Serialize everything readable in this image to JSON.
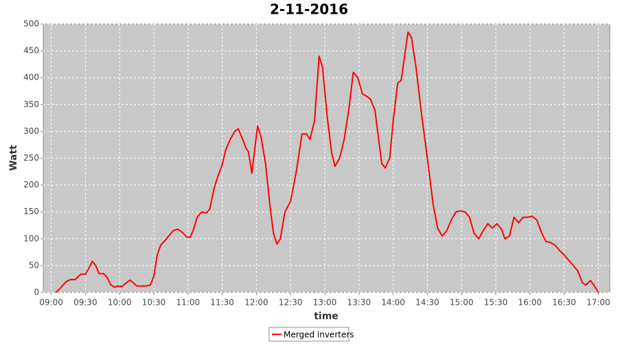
{
  "chart_data": {
    "type": "line",
    "title": "2-11-2016",
    "xlabel": "time",
    "ylabel": "Watt",
    "x": [
      "09:04",
      "09:08",
      "09:13",
      "09:17",
      "09:21",
      "09:26",
      "09:30",
      "09:33",
      "09:36",
      "09:39",
      "09:42",
      "09:46",
      "09:49",
      "09:52",
      "09:55",
      "09:59",
      "10:02",
      "10:06",
      "10:09",
      "10:12",
      "10:15",
      "10:19",
      "10:23",
      "10:27",
      "10:30",
      "10:33",
      "10:36",
      "10:40",
      "10:43",
      "10:47",
      "10:51",
      "10:55",
      "10:59",
      "11:02",
      "11:05",
      "11:08",
      "11:12",
      "11:16",
      "11:19",
      "11:23",
      "11:26",
      "11:30",
      "11:33",
      "11:37",
      "11:41",
      "11:44",
      "11:48",
      "11:51",
      "11:53",
      "11:56",
      "12:01",
      "12:04",
      "12:08",
      "12:12",
      "12:15",
      "12:18",
      "12:21",
      "12:25",
      "12:30",
      "12:35",
      "12:40",
      "12:44",
      "12:47",
      "12:51",
      "12:55",
      "12:58",
      "13:02",
      "13:06",
      "13:09",
      "13:13",
      "13:17",
      "13:21",
      "13:25",
      "13:29",
      "13:33",
      "13:37",
      "13:40",
      "13:44",
      "13:47",
      "13:50",
      "13:53",
      "13:57",
      "14:00",
      "14:04",
      "14:07",
      "14:10",
      "14:13",
      "14:16",
      "14:20",
      "14:25",
      "14:30",
      "14:35",
      "14:39",
      "14:43",
      "14:47",
      "14:51",
      "14:55",
      "14:59",
      "15:03",
      "15:07",
      "15:11",
      "15:15",
      "15:19",
      "15:23",
      "15:27",
      "15:31",
      "15:35",
      "15:38",
      "15:42",
      "15:46",
      "15:50",
      "15:54",
      "15:58",
      "16:02",
      "16:06",
      "16:10",
      "16:14",
      "16:18",
      "16:22",
      "16:26",
      "16:30",
      "16:34",
      "16:38",
      "16:42",
      "16:46",
      "16:49",
      "16:53",
      "16:56",
      "17:00"
    ],
    "series": [
      {
        "name": "Merged inverters",
        "color": "#ff0000",
        "values": [
          0,
          8,
          20,
          24,
          24,
          34,
          34,
          45,
          58,
          50,
          35,
          35,
          28,
          15,
          10,
          12,
          11,
          18,
          23,
          18,
          12,
          12,
          12,
          14,
          30,
          70,
          88,
          97,
          105,
          115,
          118,
          112,
          103,
          103,
          118,
          140,
          150,
          148,
          155,
          195,
          215,
          238,
          265,
          285,
          300,
          305,
          285,
          268,
          262,
          222,
          310,
          290,
          240,
          160,
          110,
          90,
          100,
          150,
          170,
          225,
          295,
          295,
          285,
          320,
          440,
          420,
          330,
          260,
          235,
          250,
          285,
          340,
          410,
          400,
          370,
          365,
          360,
          340,
          290,
          240,
          232,
          250,
          320,
          390,
          395,
          440,
          485,
          475,
          420,
          330,
          250,
          165,
          120,
          105,
          115,
          135,
          150,
          152,
          150,
          140,
          110,
          100,
          115,
          128,
          120,
          128,
          118,
          100,
          105,
          140,
          130,
          140,
          140,
          142,
          135,
          112,
          95,
          93,
          88,
          78,
          70,
          60,
          50,
          40,
          18,
          14,
          22,
          14,
          0
        ]
      }
    ],
    "xlim": [
      "08:53",
      "17:10"
    ],
    "xticks": [
      "09:00",
      "09:30",
      "10:00",
      "10:30",
      "11:00",
      "11:30",
      "12:00",
      "12:30",
      "13:00",
      "13:30",
      "14:00",
      "14:30",
      "15:00",
      "15:30",
      "16:00",
      "16:30",
      "17:00"
    ],
    "ylim": [
      0,
      500
    ],
    "yticks": [
      0,
      50,
      100,
      150,
      200,
      250,
      300,
      350,
      400,
      450,
      500
    ],
    "grid": true,
    "legend": "bottom"
  }
}
